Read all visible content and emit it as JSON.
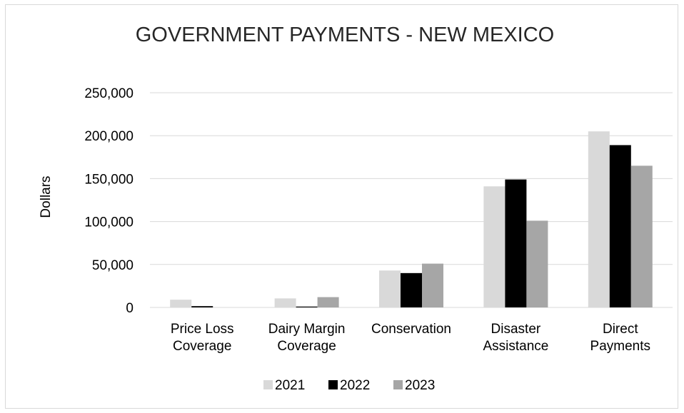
{
  "chart_data": {
    "type": "bar",
    "title": "GOVERNMENT PAYMENTS - NEW MEXICO",
    "ylabel": "Dollars",
    "xlabel": "",
    "ylim": [
      0,
      250000
    ],
    "yticks": [
      0,
      50000,
      100000,
      150000,
      200000,
      250000
    ],
    "ytick_labels": [
      "0",
      "50,000",
      "100,000",
      "150,000",
      "200,000",
      "250,000"
    ],
    "grid": true,
    "legend_position": "bottom",
    "categories": [
      [
        "Price Loss",
        "Coverage"
      ],
      [
        "Dairy Margin",
        "Coverage"
      ],
      [
        "Conservation"
      ],
      [
        "Disaster",
        "Assistance"
      ],
      [
        "Direct",
        "Payments"
      ]
    ],
    "series": [
      {
        "name": "2021",
        "color": "#d9d9d9",
        "values": [
          9000,
          10500,
          43000,
          141000,
          205000
        ]
      },
      {
        "name": "2022",
        "color": "#000000",
        "values": [
          1500,
          1000,
          40000,
          149000,
          189000
        ]
      },
      {
        "name": "2023",
        "color": "#a6a6a6",
        "values": [
          0,
          12000,
          51000,
          101000,
          165000
        ]
      }
    ]
  }
}
